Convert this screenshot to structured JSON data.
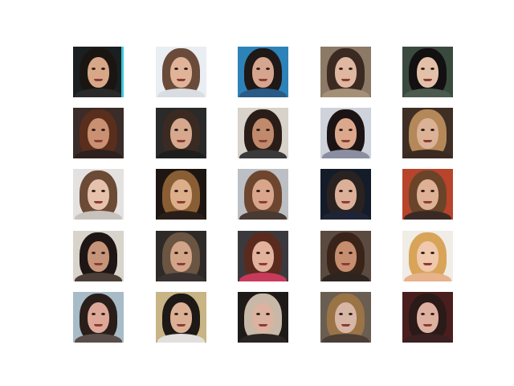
{
  "grid": {
    "rows": 5,
    "cols": 5,
    "tiles": [
      {
        "bg": "#1a1f22",
        "hair": "#1b1512",
        "skin": "#d8a788",
        "shirt": "#2a2a2a",
        "edge": "#3ec8d8"
      },
      {
        "bg": "#e8eef2",
        "hair": "#6a4b3a",
        "skin": "#e1b49a",
        "shirt": "#d9dde2",
        "edge": ""
      },
      {
        "bg": "#2d82b8",
        "hair": "#1e1816",
        "skin": "#d6a58e",
        "shirt": "#2a5a86",
        "edge": ""
      },
      {
        "bg": "#8c7a66",
        "hair": "#3a2a22",
        "skin": "#e0b7a0",
        "shirt": "#a59077",
        "edge": ""
      },
      {
        "bg": "#3a4a3e",
        "hair": "#121010",
        "skin": "#e3c0a8",
        "shirt": "#4a5a4e",
        "edge": ""
      },
      {
        "bg": "#3a2c28",
        "hair": "#5a2e1c",
        "skin": "#c99072",
        "shirt": "#2e201c",
        "edge": ""
      },
      {
        "bg": "#2a2a2a",
        "hair": "#3b2a22",
        "skin": "#d6a88e",
        "shirt": "#1e1e1e",
        "edge": ""
      },
      {
        "bg": "#d7d2ca",
        "hair": "#2a1d18",
        "skin": "#c08a6c",
        "shirt": "#3a3a3a",
        "edge": ""
      },
      {
        "bg": "#ced2da",
        "hair": "#1c1414",
        "skin": "#dca88c",
        "shirt": "#8a8ea0",
        "edge": ""
      },
      {
        "bg": "#3e2e24",
        "hair": "#b48858",
        "skin": "#dcb296",
        "shirt": "#3a2a22",
        "edge": ""
      },
      {
        "bg": "#e4e2e0",
        "hair": "#6b4a36",
        "skin": "#e6c1ab",
        "shirt": "#c8c2bc",
        "edge": ""
      },
      {
        "bg": "#1e1612",
        "hair": "#8a5e34",
        "skin": "#dcae8a",
        "shirt": "#2a1e18",
        "edge": ""
      },
      {
        "bg": "#bcc0c4",
        "hair": "#6e4630",
        "skin": "#d9a68c",
        "shirt": "#4a3a34",
        "edge": ""
      },
      {
        "bg": "#141c2a",
        "hair": "#2a2220",
        "skin": "#dcb098",
        "shirt": "#1e2434",
        "edge": ""
      },
      {
        "bg": "#b8442c",
        "hair": "#6a4428",
        "skin": "#deb094",
        "shirt": "#3a2a26",
        "edge": ""
      },
      {
        "bg": "#d8d4cc",
        "hair": "#1e1614",
        "skin": "#c69478",
        "shirt": "#4a3e36",
        "edge": ""
      },
      {
        "bg": "#2e2a28",
        "hair": "#6a5442",
        "skin": "#d2a488",
        "shirt": "#3a3230",
        "edge": ""
      },
      {
        "bg": "#3a3a3e",
        "hair": "#5a2a1e",
        "skin": "#e2b29c",
        "shirt": "#c83a5a",
        "edge": ""
      },
      {
        "bg": "#5a4a40",
        "hair": "#3a241a",
        "skin": "#c68e6e",
        "shirt": "#2e2420",
        "edge": ""
      },
      {
        "bg": "#f0ece6",
        "hair": "#d8a458",
        "skin": "#f0c8ac",
        "shirt": "#e8b28a",
        "edge": ""
      },
      {
        "bg": "#a8bcc8",
        "hair": "#2a1e1a",
        "skin": "#dea898",
        "shirt": "#5a4e4a",
        "edge": ""
      },
      {
        "bg": "#c8b484",
        "hair": "#1e1816",
        "skin": "#dcb094",
        "shirt": "#e2e0dc",
        "edge": ""
      },
      {
        "bg": "#1e1a18",
        "hair": "#c8b8a8",
        "skin": "#dcb2a0",
        "shirt": "#2a2422",
        "edge": ""
      },
      {
        "bg": "#6a5e52",
        "hair": "#9a7446",
        "skin": "#d8b6a6",
        "shirt": "#4a3e36",
        "edge": ""
      },
      {
        "bg": "#4a1e1e",
        "hair": "#2a1a18",
        "skin": "#deb0a0",
        "shirt": "#3a2020",
        "edge": ""
      }
    ]
  }
}
